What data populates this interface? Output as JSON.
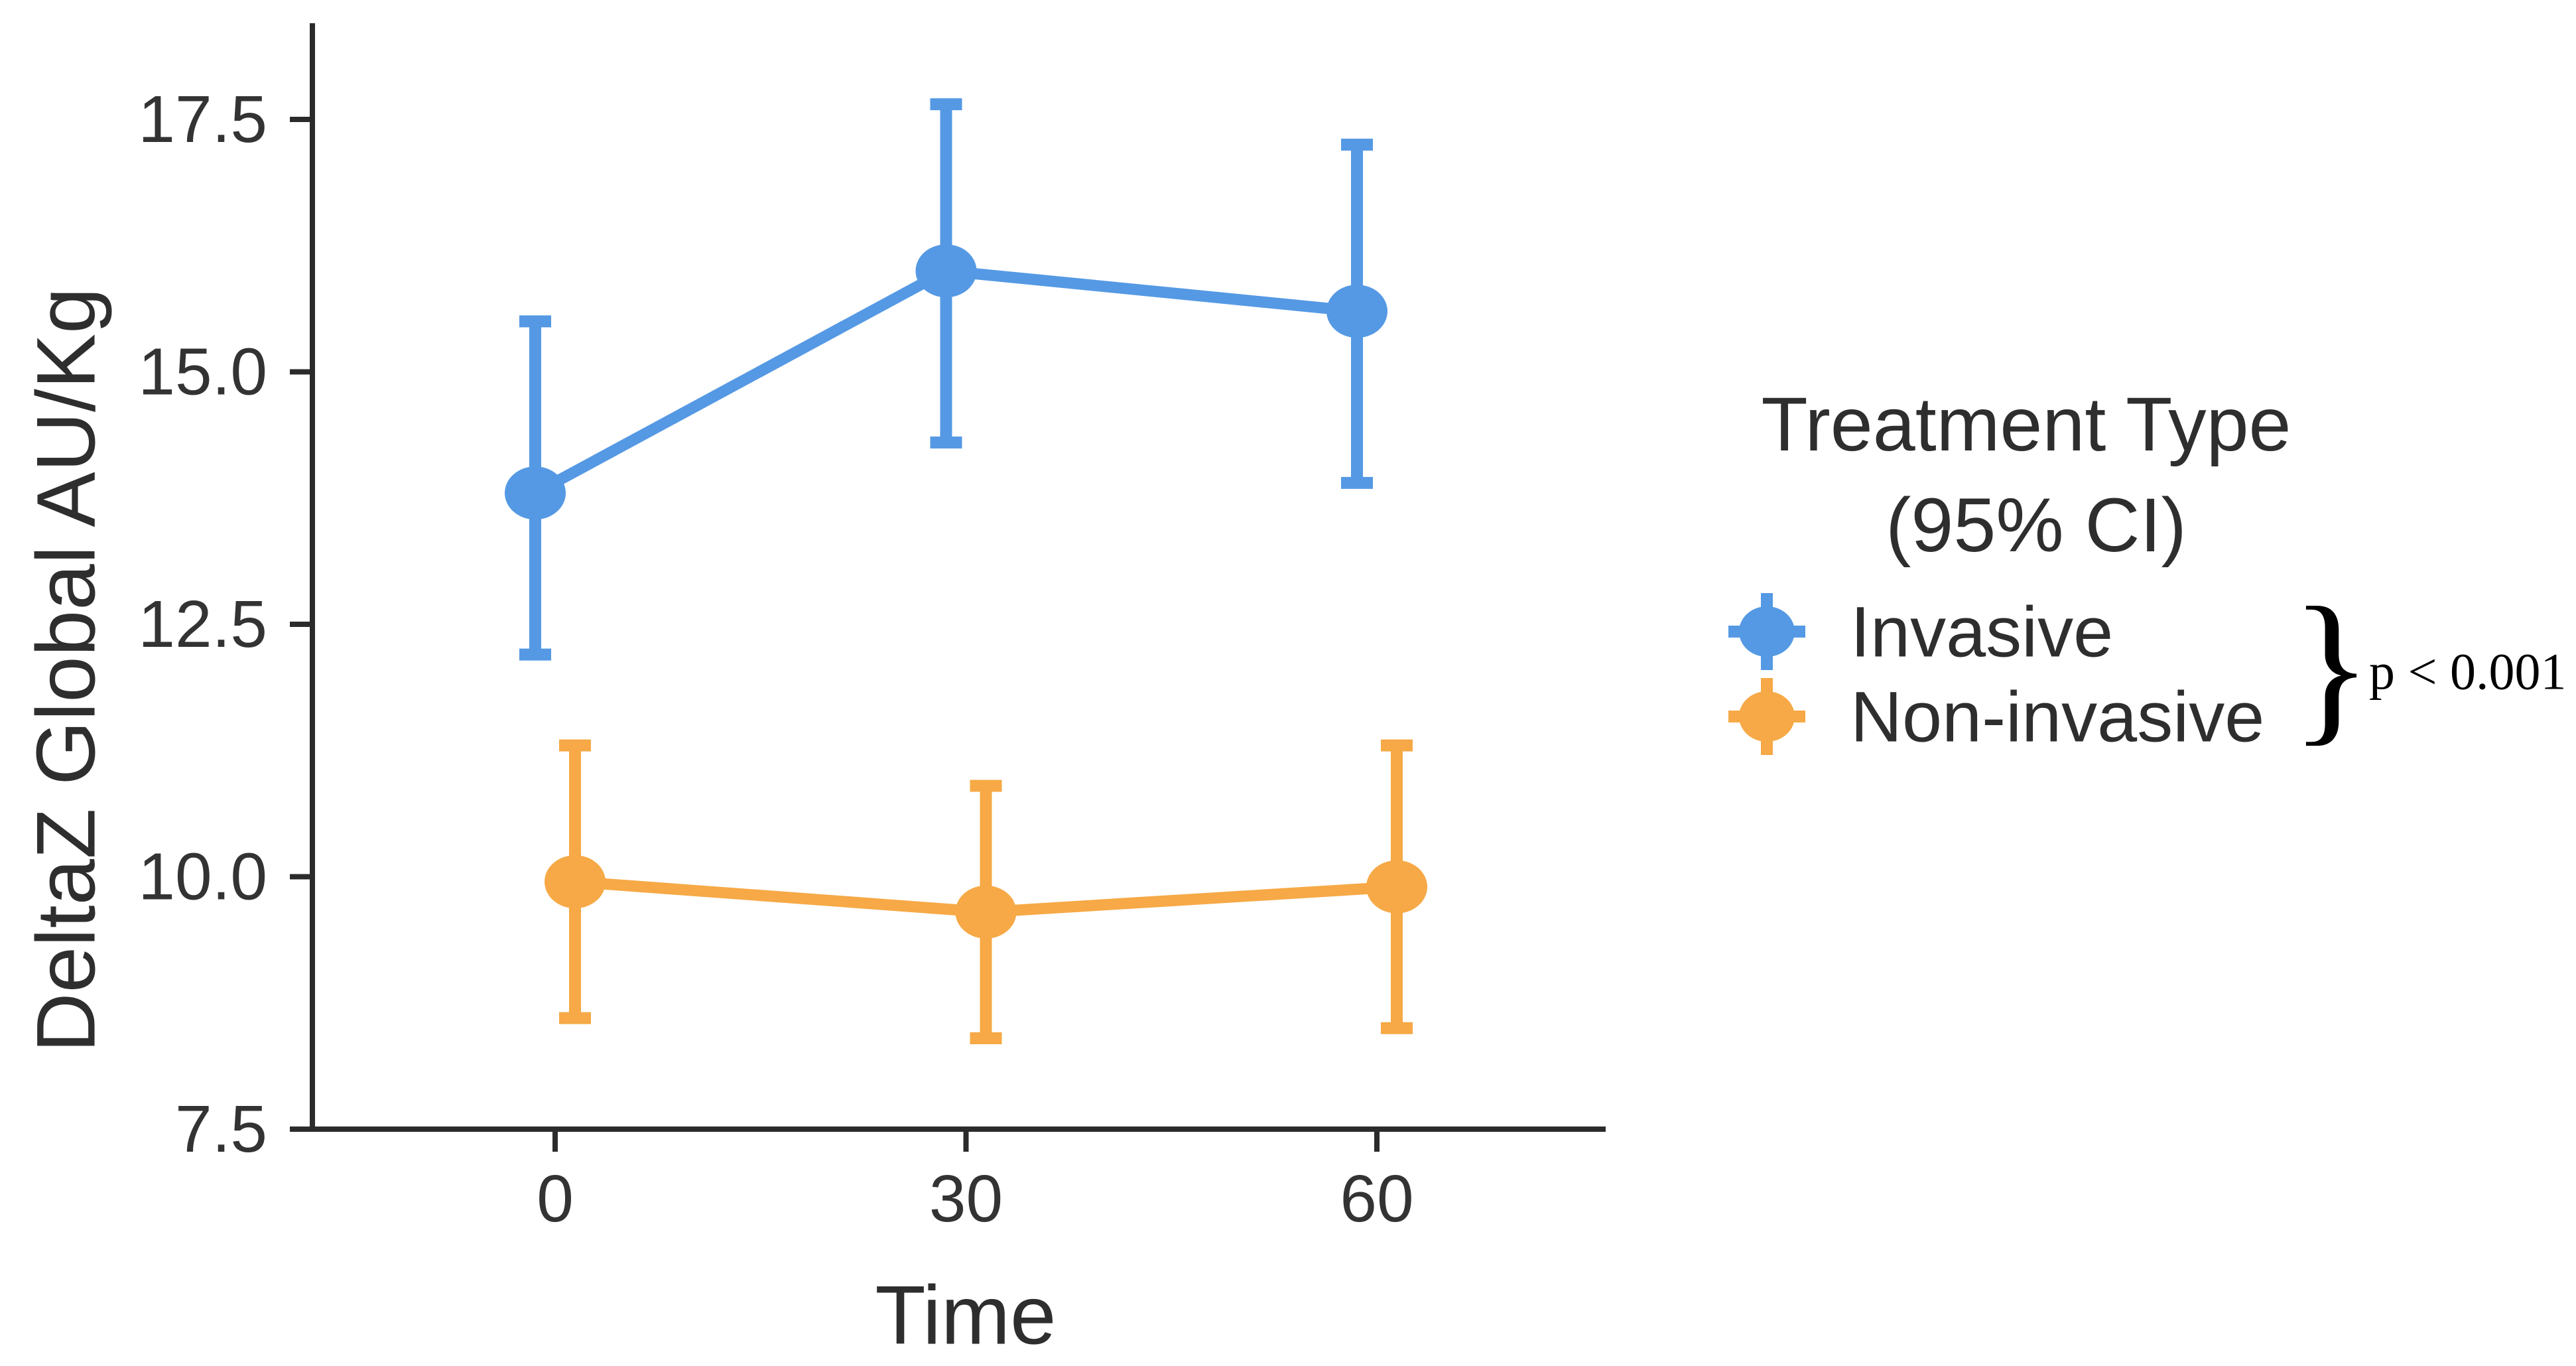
{
  "figure": {
    "background": "#ffffff",
    "text_color": "#303030",
    "axis_color": "#2b2b2b"
  },
  "legend": {
    "title_line1": "Treatment Type",
    "title_line2": "(95% CI)",
    "annotation_brace": "}",
    "annotation_text": "p < 0.001"
  },
  "chart_data": {
    "type": "line",
    "title": "",
    "xlabel": "Time",
    "ylabel": "DeltaZ Global AU/Kg",
    "x": [
      0,
      30,
      60
    ],
    "xtick_labels": [
      "0",
      "30",
      "60"
    ],
    "yticks": [
      7.5,
      10.0,
      12.5,
      15.0,
      17.5
    ],
    "ylim": [
      7.5,
      18.45
    ],
    "xlim": [
      -18,
      77
    ],
    "grid": false,
    "legend_position": "right",
    "error_bars": "95% CI",
    "series": [
      {
        "name": "Invasive",
        "color": "#5599E4",
        "means": [
          13.8,
          16.0,
          15.6
        ],
        "ci_low": [
          12.2,
          14.3,
          13.9
        ],
        "ci_high": [
          15.5,
          17.65,
          17.25
        ]
      },
      {
        "name": "Non-invasive",
        "color": "#F6A946",
        "means": [
          9.95,
          9.65,
          9.9
        ],
        "ci_low": [
          8.6,
          8.4,
          8.5
        ],
        "ci_high": [
          11.3,
          10.9,
          11.3
        ]
      }
    ],
    "significance_note": "p < 0.001 between treatment types"
  }
}
